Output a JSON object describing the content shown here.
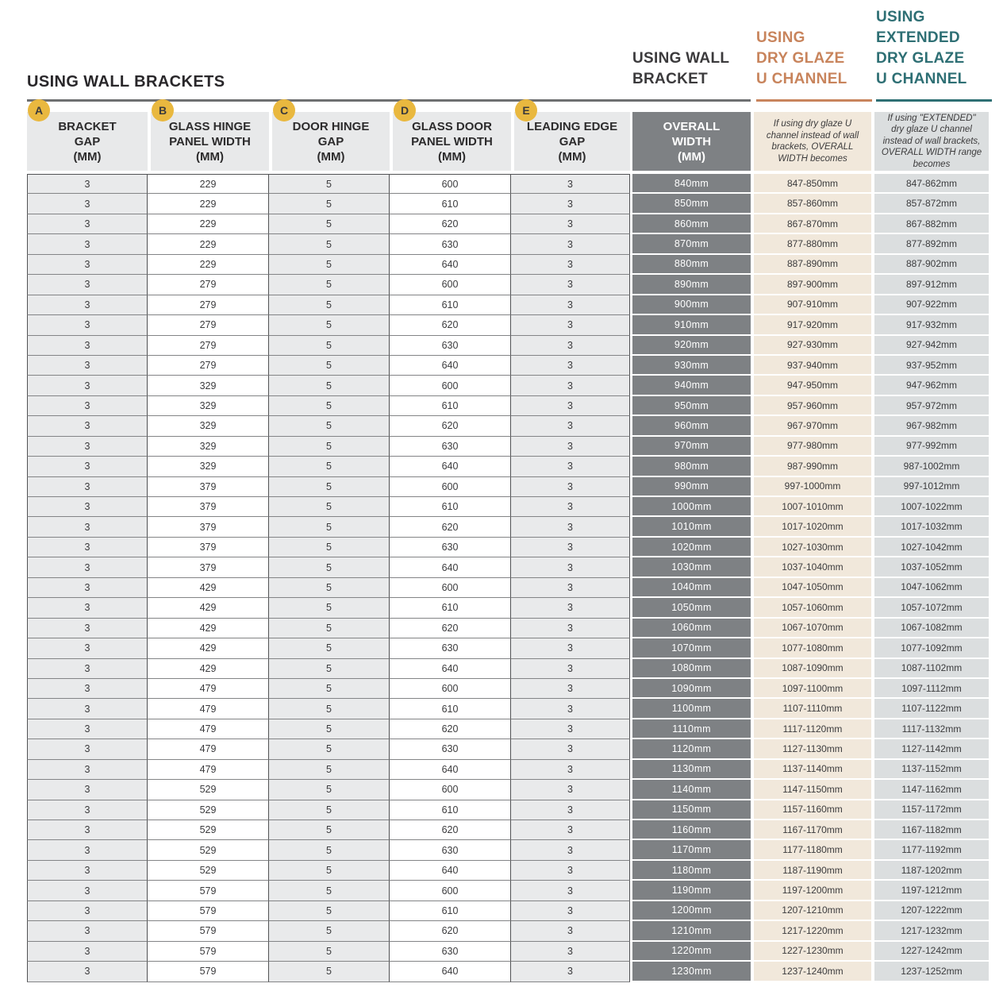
{
  "section": {
    "title": "USING WALL BRACKETS"
  },
  "group_headers": {
    "wall": {
      "lines": [
        "USING WALL",
        "BRACKET"
      ],
      "color": "#3b3a3c"
    },
    "dry": {
      "lines": [
        "USING",
        "DRY GLAZE",
        "U CHANNEL"
      ],
      "color": "#c8845c"
    },
    "extended": {
      "lines": [
        "USING",
        "EXTENDED",
        "DRY GLAZE",
        "U CHANNEL"
      ],
      "color": "#2e6f74"
    }
  },
  "columns": [
    {
      "badge": "A",
      "lines": [
        "BRACKET",
        "GAP",
        "(MM)"
      ]
    },
    {
      "badge": "B",
      "lines": [
        "GLASS HINGE",
        "PANEL WIDTH",
        "(MM)"
      ]
    },
    {
      "badge": "C",
      "lines": [
        "DOOR HINGE",
        "GAP",
        "(MM)"
      ]
    },
    {
      "badge": "D",
      "lines": [
        "GLASS DOOR",
        "PANEL WIDTH",
        "(MM)"
      ]
    },
    {
      "badge": "E",
      "lines": [
        "LEADING EDGE",
        "GAP",
        "(MM)"
      ]
    },
    {
      "lines": [
        "OVERALL",
        "WIDTH",
        "(MM)"
      ]
    },
    {
      "note": "If using dry glaze U channel instead of wall brackets, OVERALL WIDTH becomes"
    },
    {
      "note": "If using \"EXTENDED\" dry glaze U channel instead of wall brackets, OVERALL WIDTH range becomes"
    }
  ],
  "colors": {
    "badge": "#e9b83f",
    "light_cell_bg": "#e9eaeb",
    "overall_bg": "#7e8184",
    "dry_glaze_bg": "#f1e8db",
    "extended_bg": "#dbdedf",
    "orange_accent": "#c8845c",
    "teal_accent": "#2e6f74"
  },
  "table": {
    "rows": [
      [
        "3",
        "229",
        "5",
        "600",
        "3",
        "840mm",
        "847-850mm",
        "847-862mm"
      ],
      [
        "3",
        "229",
        "5",
        "610",
        "3",
        "850mm",
        "857-860mm",
        "857-872mm"
      ],
      [
        "3",
        "229",
        "5",
        "620",
        "3",
        "860mm",
        "867-870mm",
        "867-882mm"
      ],
      [
        "3",
        "229",
        "5",
        "630",
        "3",
        "870mm",
        "877-880mm",
        "877-892mm"
      ],
      [
        "3",
        "229",
        "5",
        "640",
        "3",
        "880mm",
        "887-890mm",
        "887-902mm"
      ],
      [
        "3",
        "279",
        "5",
        "600",
        "3",
        "890mm",
        "897-900mm",
        "897-912mm"
      ],
      [
        "3",
        "279",
        "5",
        "610",
        "3",
        "900mm",
        "907-910mm",
        "907-922mm"
      ],
      [
        "3",
        "279",
        "5",
        "620",
        "3",
        "910mm",
        "917-920mm",
        "917-932mm"
      ],
      [
        "3",
        "279",
        "5",
        "630",
        "3",
        "920mm",
        "927-930mm",
        "927-942mm"
      ],
      [
        "3",
        "279",
        "5",
        "640",
        "3",
        "930mm",
        "937-940mm",
        "937-952mm"
      ],
      [
        "3",
        "329",
        "5",
        "600",
        "3",
        "940mm",
        "947-950mm",
        "947-962mm"
      ],
      [
        "3",
        "329",
        "5",
        "610",
        "3",
        "950mm",
        "957-960mm",
        "957-972mm"
      ],
      [
        "3",
        "329",
        "5",
        "620",
        "3",
        "960mm",
        "967-970mm",
        "967-982mm"
      ],
      [
        "3",
        "329",
        "5",
        "630",
        "3",
        "970mm",
        "977-980mm",
        "977-992mm"
      ],
      [
        "3",
        "329",
        "5",
        "640",
        "3",
        "980mm",
        "987-990mm",
        "987-1002mm"
      ],
      [
        "3",
        "379",
        "5",
        "600",
        "3",
        "990mm",
        "997-1000mm",
        "997-1012mm"
      ],
      [
        "3",
        "379",
        "5",
        "610",
        "3",
        "1000mm",
        "1007-1010mm",
        "1007-1022mm"
      ],
      [
        "3",
        "379",
        "5",
        "620",
        "3",
        "1010mm",
        "1017-1020mm",
        "1017-1032mm"
      ],
      [
        "3",
        "379",
        "5",
        "630",
        "3",
        "1020mm",
        "1027-1030mm",
        "1027-1042mm"
      ],
      [
        "3",
        "379",
        "5",
        "640",
        "3",
        "1030mm",
        "1037-1040mm",
        "1037-1052mm"
      ],
      [
        "3",
        "429",
        "5",
        "600",
        "3",
        "1040mm",
        "1047-1050mm",
        "1047-1062mm"
      ],
      [
        "3",
        "429",
        "5",
        "610",
        "3",
        "1050mm",
        "1057-1060mm",
        "1057-1072mm"
      ],
      [
        "3",
        "429",
        "5",
        "620",
        "3",
        "1060mm",
        "1067-1070mm",
        "1067-1082mm"
      ],
      [
        "3",
        "429",
        "5",
        "630",
        "3",
        "1070mm",
        "1077-1080mm",
        "1077-1092mm"
      ],
      [
        "3",
        "429",
        "5",
        "640",
        "3",
        "1080mm",
        "1087-1090mm",
        "1087-1102mm"
      ],
      [
        "3",
        "479",
        "5",
        "600",
        "3",
        "1090mm",
        "1097-1100mm",
        "1097-1112mm"
      ],
      [
        "3",
        "479",
        "5",
        "610",
        "3",
        "1100mm",
        "1107-1110mm",
        "1107-1122mm"
      ],
      [
        "3",
        "479",
        "5",
        "620",
        "3",
        "1110mm",
        "1117-1120mm",
        "1117-1132mm"
      ],
      [
        "3",
        "479",
        "5",
        "630",
        "3",
        "1120mm",
        "1127-1130mm",
        "1127-1142mm"
      ],
      [
        "3",
        "479",
        "5",
        "640",
        "3",
        "1130mm",
        "1137-1140mm",
        "1137-1152mm"
      ],
      [
        "3",
        "529",
        "5",
        "600",
        "3",
        "1140mm",
        "1147-1150mm",
        "1147-1162mm"
      ],
      [
        "3",
        "529",
        "5",
        "610",
        "3",
        "1150mm",
        "1157-1160mm",
        "1157-1172mm"
      ],
      [
        "3",
        "529",
        "5",
        "620",
        "3",
        "1160mm",
        "1167-1170mm",
        "1167-1182mm"
      ],
      [
        "3",
        "529",
        "5",
        "630",
        "3",
        "1170mm",
        "1177-1180mm",
        "1177-1192mm"
      ],
      [
        "3",
        "529",
        "5",
        "640",
        "3",
        "1180mm",
        "1187-1190mm",
        "1187-1202mm"
      ],
      [
        "3",
        "579",
        "5",
        "600",
        "3",
        "1190mm",
        "1197-1200mm",
        "1197-1212mm"
      ],
      [
        "3",
        "579",
        "5",
        "610",
        "3",
        "1200mm",
        "1207-1210mm",
        "1207-1222mm"
      ],
      [
        "3",
        "579",
        "5",
        "620",
        "3",
        "1210mm",
        "1217-1220mm",
        "1217-1232mm"
      ],
      [
        "3",
        "579",
        "5",
        "630",
        "3",
        "1220mm",
        "1227-1230mm",
        "1227-1242mm"
      ],
      [
        "3",
        "579",
        "5",
        "640",
        "3",
        "1230mm",
        "1237-1240mm",
        "1237-1252mm"
      ]
    ]
  }
}
